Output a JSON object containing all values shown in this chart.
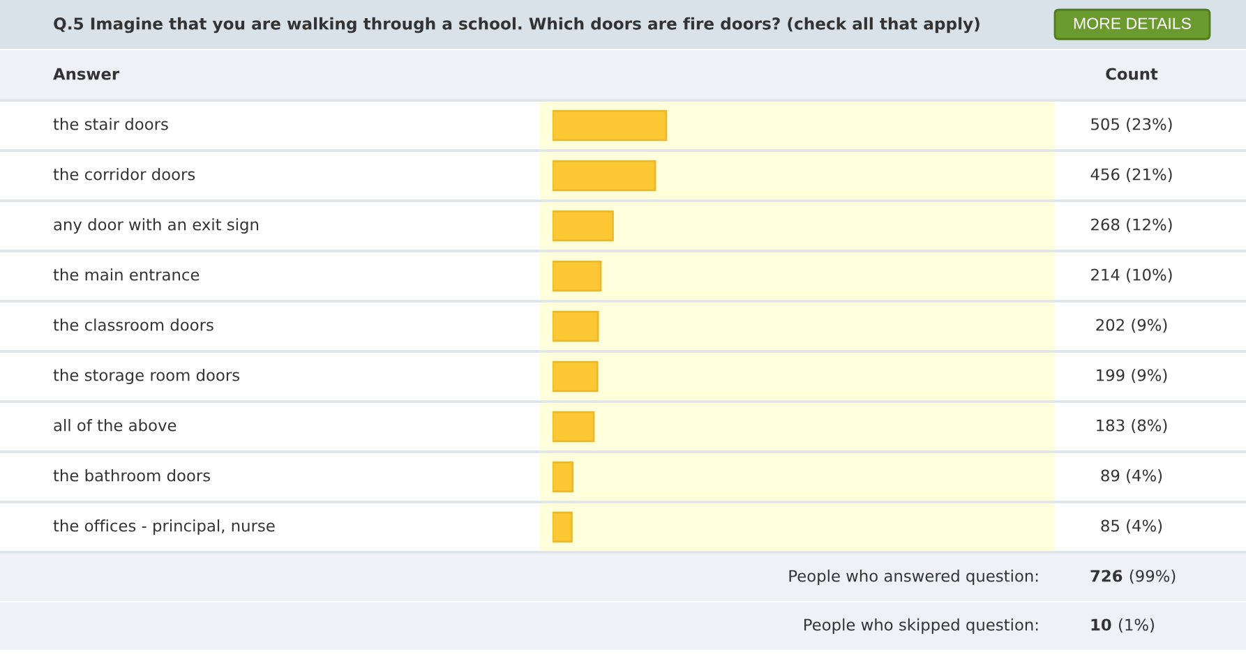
{
  "chart_data": {
    "type": "bar",
    "orientation": "horizontal",
    "title": "Q.5 Imagine that you are walking through a school. Which doors are fire doors? (check all that apply)",
    "categories": [
      "the stair doors",
      "the corridor doors",
      "any door with an exit sign",
      "the main entrance",
      "the classroom doors",
      "the storage room doors",
      "all of the above",
      "the bathroom doors",
      "the offices - principal, nurse"
    ],
    "values": [
      505,
      456,
      268,
      214,
      202,
      199,
      183,
      89,
      85
    ],
    "value_labels": [
      "505 (23%)",
      "456 (21%)",
      "268 (12%)",
      "214 (10%)",
      "202 (9%)",
      "199 (9%)",
      "183 (8%)",
      "89 (4%)",
      "85 (4%)"
    ],
    "color": "#fbc833",
    "annotations": [
      "Answer",
      "Count",
      "MORE DETAILS",
      "People who answered question:",
      "726",
      "(99%)",
      "People who skipped question:",
      "10",
      "(1%)"
    ]
  }
}
